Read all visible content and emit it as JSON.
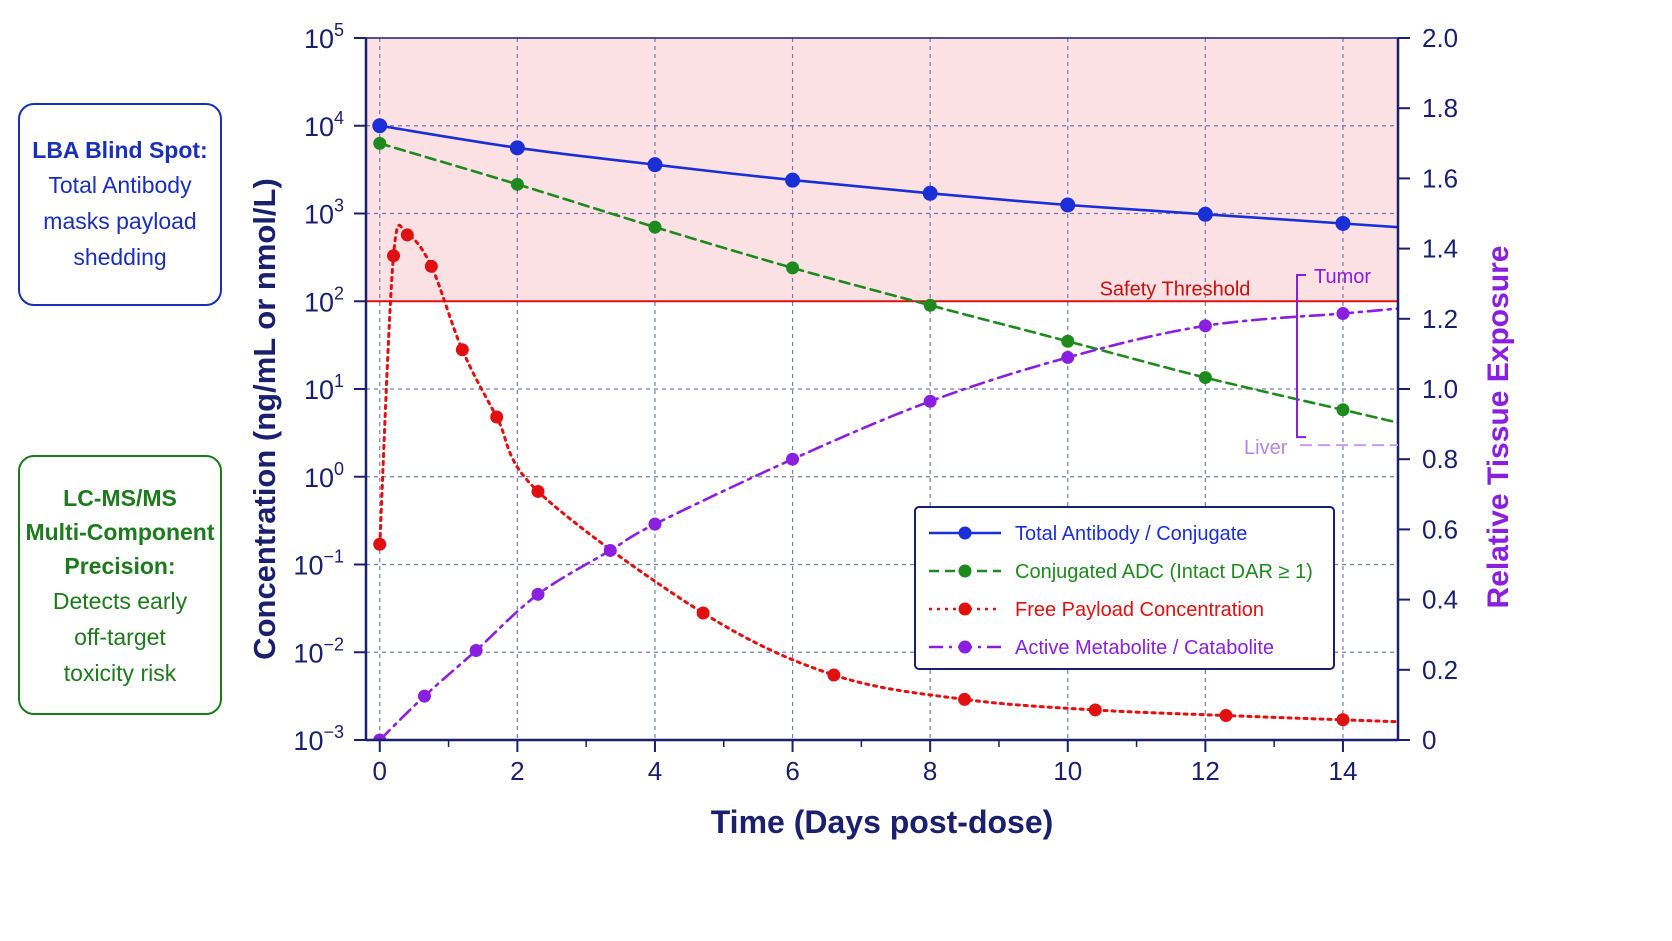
{
  "side_notes": {
    "lba": {
      "title": "LBA Blind Spot:",
      "lines": [
        "Total Antibody",
        "masks payload",
        "shedding"
      ]
    },
    "lcms": {
      "title_lines": [
        "LC-MS/MS",
        "Multi-Component",
        "Precision:"
      ],
      "lines": [
        "Detects early",
        "off-target",
        "toxicity risk"
      ]
    }
  },
  "colors": {
    "total": "#1b2fd6",
    "conj": "#1e8a1e",
    "free": "#e01010",
    "metab": "#8a1fe0",
    "axis": "#1a1f6e",
    "danger_fill": "#fbe0e4",
    "threshold": "#e01010"
  },
  "chart_data": {
    "type": "line",
    "xlabel": "Time (Days post-dose)",
    "ylabel": "Concentration (ng/mL or nmol/L)",
    "y2label": "Relative Tissue Exposure",
    "xlim": [
      -0.2,
      14.8
    ],
    "ylim_log10": [
      -3,
      5
    ],
    "y_scale": "log",
    "y2lim": [
      0,
      2.0
    ],
    "x_ticks": [
      "0",
      "2",
      "4",
      "6",
      "8",
      "10",
      "12",
      "14"
    ],
    "y_ticks_exp": [
      "-3",
      "-2",
      "-1",
      "0",
      "1",
      "2",
      "3",
      "4",
      "5"
    ],
    "y_tick_base": "10",
    "y2_ticks": [
      "0",
      "0.2",
      "0.4",
      "0.6",
      "0.8",
      "1.0",
      "1.2",
      "1.4",
      "1.6",
      "1.8",
      "2.0"
    ],
    "grid": true,
    "legend_position": "lower-right",
    "threshold": {
      "label": "Safety Threshold",
      "value": 100
    },
    "annotations": {
      "tumor": "Tumor",
      "liver": "Liver",
      "tumor_level": 1.21,
      "liver_level": 0.84
    },
    "series": [
      {
        "name": "Total Antibody / Conjugate",
        "key": "total",
        "style": "solid",
        "axis": "left",
        "x": [
          0,
          2,
          4,
          6,
          8,
          10,
          12,
          14
        ],
        "y": [
          10000,
          5600,
          3600,
          2400,
          1700,
          1250,
          980,
          770
        ]
      },
      {
        "name": "Conjugated ADC (Intact DAR ≥ 1)",
        "key": "conj",
        "style": "dashed",
        "axis": "left",
        "x": [
          0,
          2,
          4,
          6,
          8,
          10,
          12,
          14
        ],
        "y": [
          6300,
          2150,
          700,
          240,
          90,
          35,
          13.5,
          5.8
        ]
      },
      {
        "name": "Free Payload Concentration",
        "key": "free",
        "style": "dotted",
        "axis": "left",
        "x": [
          0,
          0.2,
          0.4,
          0.75,
          1.2,
          1.7,
          2.3,
          4.7,
          6.6,
          8.5,
          10.4,
          12.3,
          14
        ],
        "y": [
          0.17,
          330,
          570,
          250,
          28,
          4.8,
          0.68,
          0.028,
          0.0055,
          0.0029,
          0.0022,
          0.0019,
          0.0017
        ]
      },
      {
        "name": "Active Metabolite / Catabolite",
        "key": "metab",
        "style": "dashdot",
        "axis": "right",
        "x": [
          0,
          0.65,
          1.4,
          2.3,
          3.35,
          4,
          6,
          8,
          10,
          12,
          14
        ],
        "y": [
          0.0,
          0.125,
          0.255,
          0.415,
          0.54,
          0.615,
          0.8,
          0.965,
          1.09,
          1.18,
          1.215
        ]
      }
    ]
  }
}
